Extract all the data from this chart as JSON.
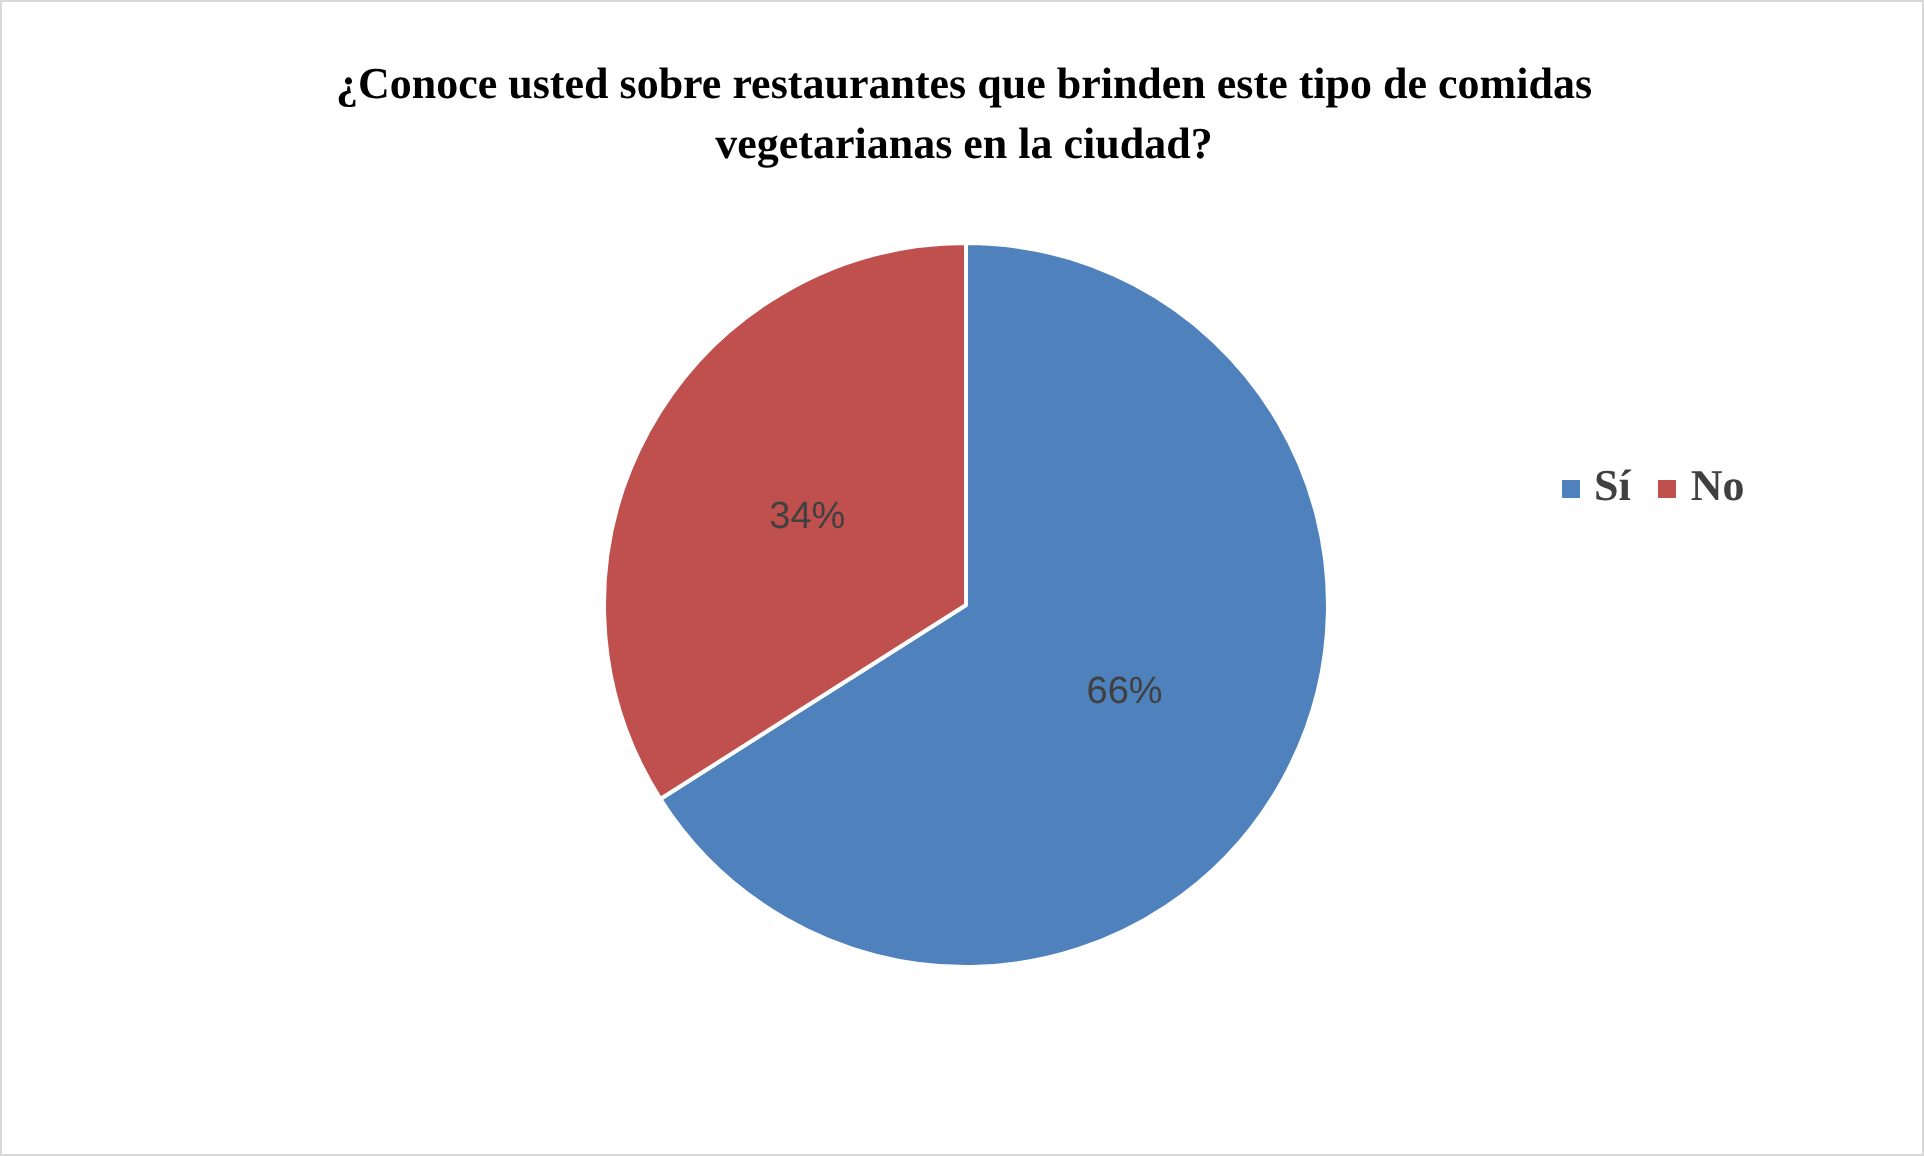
{
  "chart_data": {
    "type": "pie",
    "title": "¿Conoce usted sobre restaurantes que brinden este tipo de comidas vegetarianas en la ciudad?",
    "categories": [
      "Sí",
      "No"
    ],
    "values": [
      66,
      34
    ],
    "colors": [
      "#4f81bd",
      "#c0504d"
    ],
    "value_labels": [
      "66%",
      "34%"
    ],
    "legend": "right"
  }
}
